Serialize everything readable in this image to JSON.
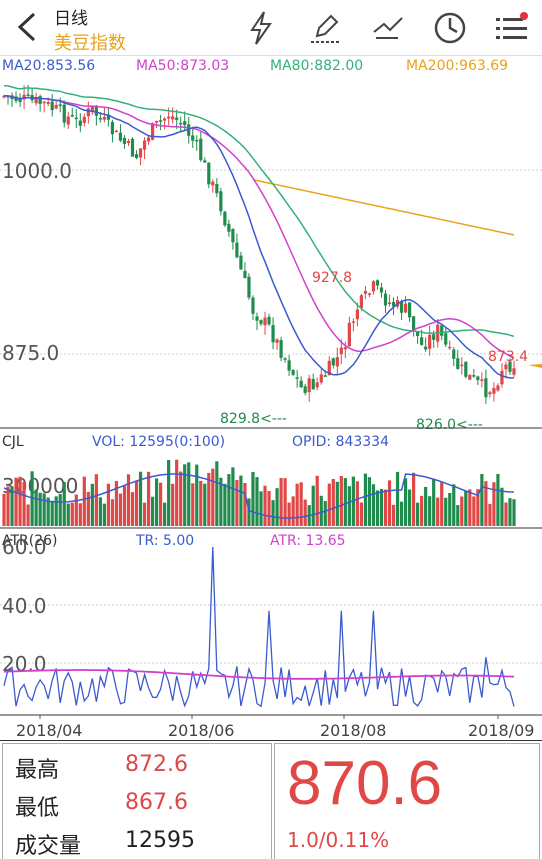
{
  "header": {
    "title": "日线",
    "subtitle": "美豆指数",
    "icons": [
      "back-icon",
      "lightning-icon",
      "pen-icon",
      "draw-line-icon",
      "clock-icon",
      "menu-icon"
    ]
  },
  "ma_legend": {
    "ma20": {
      "text": "MA20:853.56",
      "color": "#3a5bd0"
    },
    "ma50": {
      "text": "MA50:873.03",
      "color": "#d23fcf"
    },
    "ma80": {
      "text": "MA80:882.00",
      "color": "#35b07a"
    },
    "ma200": {
      "text": "MA200:963.69",
      "color": "#e8a21c"
    }
  },
  "price_panel": {
    "y_ticks": [
      "1000.0",
      "875.0"
    ],
    "annotations": {
      "high": "927.8",
      "low1": "829.8<---",
      "low2": "826.0<---",
      "last": "873.4"
    }
  },
  "volume_panel": {
    "label": "CJL",
    "vol": "VOL: 12595(0:100)",
    "opid": "OPID: 843334",
    "y_tick": "300000"
  },
  "atr_panel": {
    "label": "ATR(26)",
    "tr": "TR: 5.00",
    "atr": "ATR: 13.65",
    "y_ticks": [
      "60.0",
      "40.0",
      "20.0"
    ]
  },
  "x_axis": [
    "2018/04",
    "2018/06",
    "2018/08",
    "2018/09"
  ],
  "stats": {
    "high_label": "最高",
    "high_value": "872.6",
    "low_label": "最低",
    "low_value": "867.6",
    "volume_label": "成交量",
    "volume_value": "12595"
  },
  "quote": {
    "price": "870.6",
    "change": "1.0/0.11%"
  },
  "colors": {
    "up": "#e04848",
    "down": "#1f8b4c",
    "ma20": "#3a5bd0",
    "ma50": "#d23fcf",
    "ma80": "#35b07a",
    "ma200": "#e8a21c"
  }
}
